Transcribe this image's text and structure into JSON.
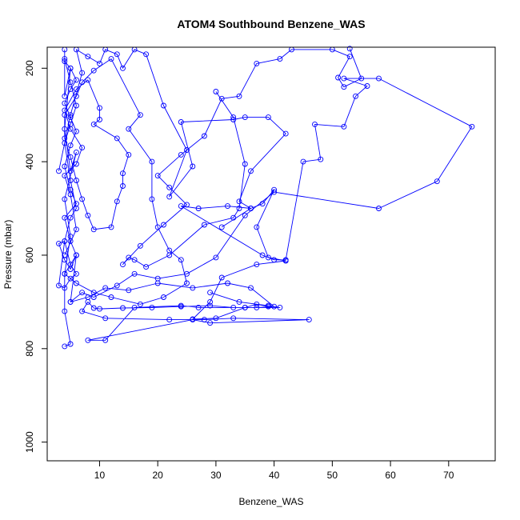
{
  "chart_data": {
    "type": "line",
    "title": "ATOM4 Southbound Benzene_WAS",
    "xlabel": "Benzene_WAS",
    "ylabel": "Pressure (mbar)",
    "xlim": [
      1,
      78
    ],
    "ylim": [
      1040,
      155
    ],
    "y_reversed": true,
    "x_ticks": [
      10,
      20,
      30,
      40,
      50,
      60,
      70
    ],
    "y_ticks": [
      200,
      400,
      600,
      800,
      1000
    ],
    "grid": false,
    "marker": "open-circle",
    "color": "#0000ff",
    "series": [
      {
        "values": [
          [
            4,
            160
          ],
          [
            4,
            260
          ],
          [
            5,
            200
          ],
          [
            4,
            330
          ],
          [
            5,
            420
          ],
          [
            6,
            380
          ],
          [
            4,
            480
          ],
          [
            5,
            560
          ],
          [
            4,
            640
          ],
          [
            6,
            600
          ],
          [
            5,
            700
          ],
          [
            8,
            690
          ],
          [
            11,
            670
          ],
          [
            15,
            675
          ],
          [
            20,
            660
          ],
          [
            26,
            670
          ],
          [
            32,
            660
          ],
          [
            36,
            670
          ],
          [
            40,
            710
          ],
          [
            37,
            712
          ],
          [
            33,
            712
          ],
          [
            29,
            708
          ],
          [
            24,
            710
          ],
          [
            19,
            712
          ],
          [
            14,
            713
          ],
          [
            10,
            715
          ],
          [
            9,
            713
          ],
          [
            8,
            700
          ],
          [
            7,
            720
          ],
          [
            11,
            735
          ],
          [
            22,
            738
          ],
          [
            28,
            738
          ],
          [
            33,
            735
          ],
          [
            46,
            738
          ],
          [
            29,
            745
          ],
          [
            26,
            738
          ],
          [
            8,
            782
          ],
          [
            11,
            782
          ],
          [
            16,
            712
          ],
          [
            24,
            708
          ],
          [
            27,
            712
          ],
          [
            35,
            712
          ],
          [
            41,
            712
          ],
          [
            39,
            708
          ],
          [
            34,
            700
          ],
          [
            29,
            680
          ]
        ]
      },
      {
        "values": [
          [
            3,
            420
          ],
          [
            5,
            300
          ],
          [
            7,
            210
          ],
          [
            6,
            160
          ],
          [
            8,
            175
          ],
          [
            10,
            190
          ],
          [
            11,
            160
          ],
          [
            13,
            170
          ],
          [
            14,
            200
          ],
          [
            16,
            160
          ],
          [
            18,
            170
          ],
          [
            21,
            280
          ],
          [
            25,
            375
          ],
          [
            22,
            475
          ],
          [
            26,
            410
          ],
          [
            24,
            315
          ],
          [
            33,
            310
          ],
          [
            35,
            305
          ],
          [
            39,
            305
          ],
          [
            42,
            340
          ],
          [
            36,
            420
          ],
          [
            34,
            485
          ],
          [
            36,
            500
          ],
          [
            32,
            495
          ],
          [
            27,
            500
          ],
          [
            24,
            495
          ],
          [
            38,
            600
          ],
          [
            40,
            610
          ],
          [
            42,
            610
          ],
          [
            45,
            400
          ],
          [
            48,
            395
          ],
          [
            47,
            320
          ],
          [
            52,
            325
          ],
          [
            54,
            260
          ],
          [
            56,
            238
          ],
          [
            52,
            222
          ],
          [
            58,
            222
          ],
          [
            74,
            325
          ],
          [
            68,
            442
          ],
          [
            58,
            500
          ],
          [
            40,
            465
          ],
          [
            35,
            515
          ],
          [
            30,
            605
          ],
          [
            25,
            640
          ],
          [
            20,
            650
          ],
          [
            16,
            640
          ],
          [
            13,
            665
          ],
          [
            9,
            690
          ],
          [
            7,
            680
          ],
          [
            5,
            700
          ]
        ]
      },
      {
        "values": [
          [
            4,
            600
          ],
          [
            6,
            545
          ],
          [
            5,
            470
          ],
          [
            4,
            430
          ],
          [
            6,
            405
          ],
          [
            7,
            370
          ],
          [
            5,
            330
          ],
          [
            4,
            290
          ],
          [
            6,
            245
          ],
          [
            8,
            225
          ],
          [
            10,
            285
          ],
          [
            10,
            310
          ],
          [
            9,
            320
          ],
          [
            13,
            350
          ],
          [
            15,
            385
          ],
          [
            14,
            425
          ],
          [
            14,
            452
          ],
          [
            13,
            485
          ],
          [
            12,
            540
          ],
          [
            9,
            545
          ],
          [
            8,
            515
          ],
          [
            7,
            480
          ],
          [
            6,
            440
          ],
          [
            5,
            390
          ],
          [
            4,
            350
          ],
          [
            4,
            300
          ],
          [
            6,
            260
          ],
          [
            7,
            230
          ],
          [
            9,
            205
          ],
          [
            12,
            180
          ],
          [
            17,
            300
          ],
          [
            15,
            330
          ],
          [
            19,
            400
          ],
          [
            19,
            480
          ],
          [
            20,
            540
          ],
          [
            22,
            590
          ],
          [
            24,
            610
          ],
          [
            25,
            660
          ],
          [
            21,
            690
          ],
          [
            17,
            705
          ],
          [
            12,
            690
          ],
          [
            9,
            680
          ],
          [
            6,
            660
          ],
          [
            4,
            640
          ],
          [
            4,
            720
          ],
          [
            5,
            790
          ],
          [
            4,
            795
          ]
        ]
      },
      {
        "values": [
          [
            4,
            180
          ],
          [
            5,
            230
          ],
          [
            6,
            280
          ],
          [
            5,
            320
          ],
          [
            4,
            360
          ],
          [
            5,
            440
          ],
          [
            6,
            500
          ],
          [
            5,
            520
          ],
          [
            4,
            570
          ],
          [
            5,
            620
          ],
          [
            6,
            640
          ],
          [
            5,
            650
          ],
          [
            4,
            670
          ],
          [
            3,
            665
          ],
          [
            4,
            570
          ],
          [
            3,
            575
          ],
          [
            4,
            610
          ],
          [
            5,
            630
          ],
          [
            6,
            600
          ],
          [
            5,
            570
          ],
          [
            4,
            520
          ],
          [
            6,
            490
          ],
          [
            5,
            460
          ],
          [
            4,
            410
          ],
          [
            5,
            365
          ],
          [
            6,
            335
          ],
          [
            5,
            305
          ],
          [
            4,
            275
          ],
          [
            5,
            245
          ],
          [
            6,
            225
          ],
          [
            5,
            200
          ],
          [
            4,
            185
          ]
        ]
      },
      {
        "values": [
          [
            30,
            250
          ],
          [
            33,
            305
          ],
          [
            35,
            405
          ],
          [
            34,
            500
          ],
          [
            33,
            520
          ],
          [
            28,
            535
          ],
          [
            22,
            600
          ],
          [
            18,
            625
          ],
          [
            16,
            610
          ],
          [
            15,
            605
          ],
          [
            14,
            620
          ],
          [
            17,
            580
          ],
          [
            21,
            535
          ],
          [
            25,
            492
          ],
          [
            22,
            455
          ],
          [
            20,
            430
          ],
          [
            24,
            385
          ],
          [
            28,
            345
          ],
          [
            31,
            265
          ],
          [
            34,
            260
          ],
          [
            37,
            190
          ],
          [
            41,
            180
          ],
          [
            43,
            160
          ],
          [
            50,
            160
          ],
          [
            53,
            175
          ],
          [
            51,
            220
          ],
          [
            52,
            240
          ],
          [
            55,
            222
          ],
          [
            53,
            158
          ]
        ]
      },
      {
        "values": [
          [
            31,
            540
          ],
          [
            36,
            500
          ],
          [
            38,
            490
          ],
          [
            40,
            460
          ],
          [
            37,
            540
          ],
          [
            39,
            605
          ],
          [
            42,
            612
          ],
          [
            37,
            620
          ],
          [
            31,
            648
          ],
          [
            29,
            700
          ],
          [
            26,
            737
          ],
          [
            30,
            735
          ],
          [
            35,
            712
          ],
          [
            37,
            705
          ],
          [
            39,
            710
          ]
        ]
      }
    ]
  }
}
